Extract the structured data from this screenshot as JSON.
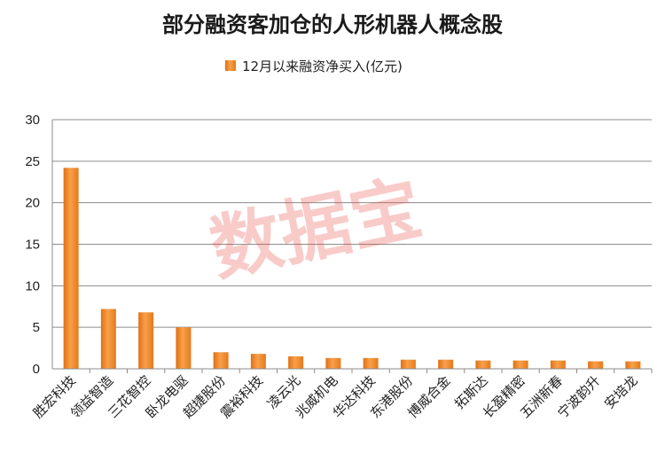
{
  "chart_data": {
    "type": "bar",
    "title": "部分融资客加仓的人形机器人概念股",
    "categories": [
      "胜宏科技",
      "领益智造",
      "三花智控",
      "卧龙电驱",
      "超捷股份",
      "震裕科技",
      "凌云光",
      "兆威机电",
      "华达科技",
      "东港股份",
      "博威合金",
      "拓斯达",
      "长盈精密",
      "五洲新春",
      "宁波韵升",
      "安培龙"
    ],
    "series": [
      {
        "name": "12月以来融资净买入(亿元)",
        "values": [
          24.2,
          7.2,
          6.8,
          5.0,
          2.0,
          1.8,
          1.5,
          1.3,
          1.3,
          1.1,
          1.1,
          1.0,
          1.0,
          1.0,
          0.9,
          0.9
        ]
      }
    ],
    "ylim": [
      0,
      30
    ],
    "yticks": [
      0,
      5,
      10,
      15,
      20,
      25,
      30
    ],
    "grid": true,
    "legend_position": "top-center",
    "bar_color": "#f08a2a",
    "watermark": "数据宝"
  }
}
